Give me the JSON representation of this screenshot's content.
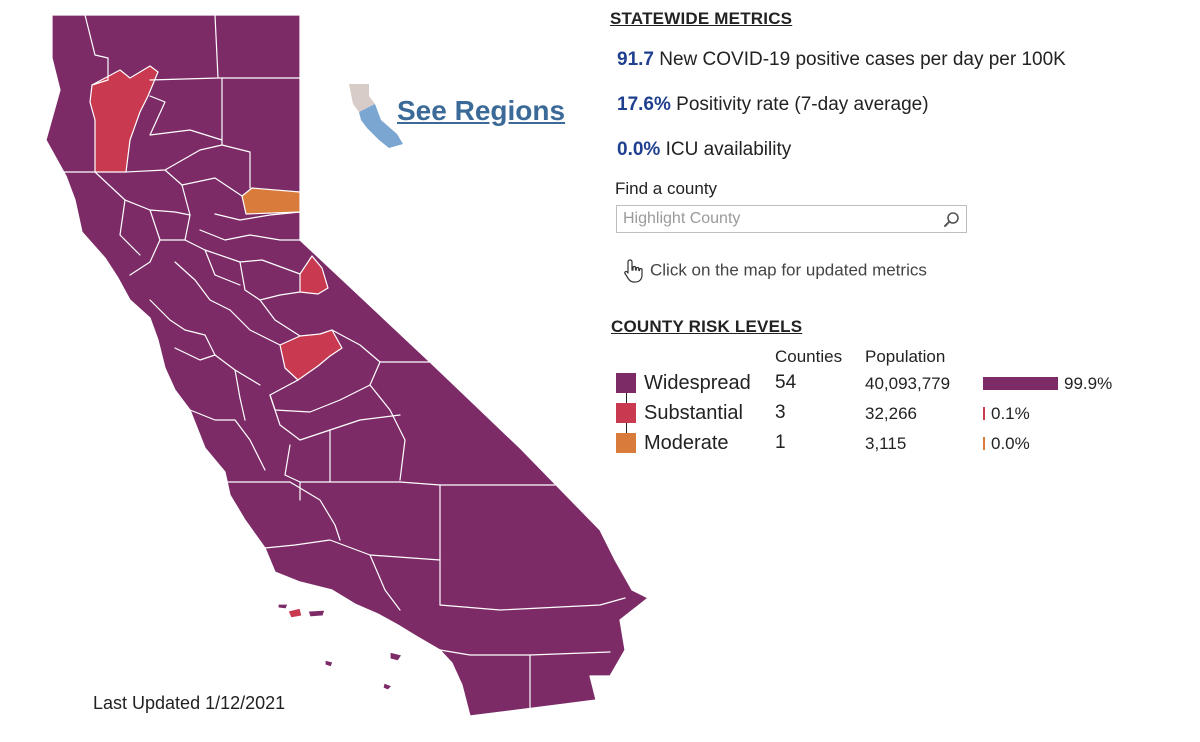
{
  "map": {
    "colors": {
      "widespread": "#7c2b67",
      "substantial": "#c9394f",
      "moderate": "#d97b3a",
      "island": "#c9394f"
    },
    "highlighted_counties": {
      "substantial": 3,
      "moderate": 1
    }
  },
  "see_regions": {
    "label": "See Regions",
    "icon": "california-regions-icon",
    "icon_colors": [
      "#d8ccc8",
      "#7aa6d1"
    ]
  },
  "last_updated": "Last Updated 1/12/2021",
  "statewide": {
    "heading": "STATEWIDE METRICS",
    "metrics": [
      {
        "value": "91.7",
        "label": "New COVID-19 positive cases per day per 100K"
      },
      {
        "value": "17.6%",
        "label": "Positivity rate (7-day average)"
      },
      {
        "value": "0.0%",
        "label": "ICU availability"
      }
    ],
    "value_color": "#1f3f8f"
  },
  "search": {
    "label": "Find a county",
    "placeholder": "Highlight County",
    "icon": "magnifier-icon"
  },
  "hint": {
    "text": "Click on the map for updated metrics",
    "icon": "pointer-hand-icon"
  },
  "risk": {
    "heading": "COUNTY RISK LEVELS",
    "columns": {
      "counties": "Counties",
      "population": "Population"
    },
    "rows": [
      {
        "label": "Widespread",
        "counties": "54",
        "population": "40,093,779",
        "pct_label": "99.9%",
        "fraction": 0.999,
        "color": "#7c2b67"
      },
      {
        "label": "Substantial",
        "counties": "3",
        "population": "32,266",
        "pct_label": "0.1%",
        "fraction": 0.001,
        "color": "#c9394f"
      },
      {
        "label": "Moderate",
        "counties": "1",
        "population": "3,115",
        "pct_label": "0.0%",
        "fraction": 0.0,
        "color": "#d97b3a"
      }
    ]
  }
}
